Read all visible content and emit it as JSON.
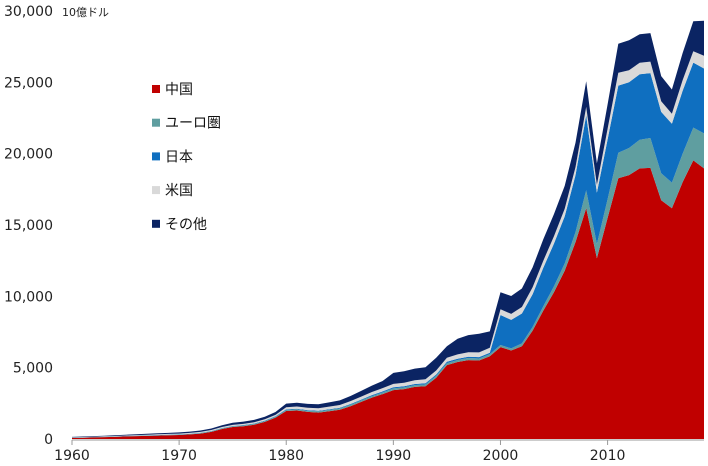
{
  "chart_data": {
    "type": "area",
    "stacked": true,
    "unit_label": "10億ドル",
    "x": [
      1960,
      1961,
      1962,
      1963,
      1964,
      1965,
      1966,
      1967,
      1968,
      1969,
      1970,
      1971,
      1972,
      1973,
      1974,
      1975,
      1976,
      1977,
      1978,
      1979,
      1980,
      1981,
      1982,
      1983,
      1984,
      1985,
      1986,
      1987,
      1988,
      1989,
      1990,
      1991,
      1992,
      1993,
      1994,
      1995,
      1996,
      1997,
      1998,
      1999,
      2000,
      2001,
      2002,
      2003,
      2004,
      2005,
      2006,
      2007,
      2008,
      2009,
      2010,
      2011,
      2012,
      2013,
      2014,
      2015,
      2016,
      2017,
      2018,
      2019
    ],
    "ylim": [
      0,
      30000
    ],
    "yticks": [
      "0",
      "5,000",
      "10,000",
      "15,000",
      "20,000",
      "25,000",
      "30,000"
    ],
    "ytick_values": [
      0,
      5000,
      10000,
      15000,
      20000,
      25000,
      30000
    ],
    "xticks": [
      "1960",
      "1970",
      "1980",
      "1990",
      "2000",
      "2010"
    ],
    "xtick_values": [
      1960,
      1970,
      1980,
      1990,
      2000,
      2010
    ],
    "legend_position": "upper-left",
    "series": [
      {
        "name": "中国",
        "color": "#c00000",
        "values": [
          70,
          90,
          110,
          130,
          150,
          180,
          200,
          220,
          240,
          260,
          280,
          320,
          380,
          500,
          700,
          840,
          900,
          1000,
          1200,
          1500,
          1960,
          2000,
          1900,
          1850,
          1950,
          2050,
          2300,
          2600,
          2900,
          3150,
          3430,
          3500,
          3650,
          3700,
          4300,
          5180,
          5400,
          5530,
          5500,
          5800,
          6440,
          6200,
          6500,
          7600,
          9000,
          10300,
          11800,
          13800,
          16170,
          12670,
          15500,
          18270,
          18500,
          18970,
          19000,
          16730,
          16170,
          18000,
          19530,
          18970
        ]
      },
      {
        "name": "ユーロ圏",
        "color": "#5f9ea0",
        "values": [
          20,
          20,
          20,
          22,
          24,
          26,
          28,
          30,
          32,
          34,
          36,
          38,
          40,
          44,
          48,
          50,
          52,
          55,
          58,
          60,
          80,
          85,
          85,
          90,
          90,
          95,
          100,
          105,
          110,
          115,
          120,
          120,
          125,
          130,
          135,
          140,
          140,
          145,
          145,
          150,
          150,
          150,
          200,
          250,
          300,
          400,
          500,
          700,
          1260,
          1000,
          1300,
          1800,
          1900,
          2000,
          2100,
          1900,
          1800,
          2000,
          2300,
          2450
        ]
      },
      {
        "name": "日本",
        "color": "#0f6fc0",
        "values": [
          10,
          10,
          10,
          10,
          10,
          12,
          12,
          12,
          14,
          14,
          15,
          16,
          18,
          20,
          22,
          24,
          26,
          28,
          30,
          32,
          40,
          42,
          44,
          46,
          48,
          50,
          55,
          60,
          65,
          70,
          75,
          78,
          80,
          82,
          85,
          90,
          92,
          95,
          98,
          100,
          2100,
          2000,
          2100,
          2300,
          2700,
          3000,
          3300,
          4000,
          5250,
          3600,
          4200,
          4700,
          4600,
          4600,
          4550,
          4300,
          4130,
          4400,
          4550,
          4550
        ]
      },
      {
        "name": "米国",
        "color": "#d9d9d9",
        "values": [
          20,
          22,
          24,
          26,
          28,
          30,
          34,
          38,
          42,
          46,
          50,
          55,
          60,
          65,
          70,
          75,
          80,
          85,
          90,
          100,
          150,
          150,
          160,
          170,
          180,
          190,
          200,
          210,
          220,
          230,
          240,
          250,
          260,
          270,
          280,
          290,
          300,
          310,
          330,
          350,
          400,
          420,
          450,
          480,
          500,
          520,
          540,
          560,
          600,
          550,
          750,
          900,
          850,
          800,
          800,
          750,
          700,
          750,
          800,
          900
        ]
      },
      {
        "name": "その他",
        "color": "#0b2463",
        "values": [
          30,
          35,
          40,
          45,
          50,
          55,
          60,
          65,
          70,
          75,
          80,
          90,
          100,
          110,
          130,
          150,
          160,
          170,
          180,
          200,
          250,
          260,
          270,
          280,
          300,
          320,
          360,
          400,
          450,
          500,
          770,
          800,
          820,
          850,
          900,
          800,
          1100,
          1200,
          1300,
          1140,
          1190,
          1250,
          1300,
          1400,
          1500,
          1550,
          1600,
          1700,
          1800,
          1500,
          1700,
          2030,
          2100,
          2000,
          2000,
          1760,
          1700,
          1900,
          2100,
          2450
        ]
      }
    ]
  }
}
